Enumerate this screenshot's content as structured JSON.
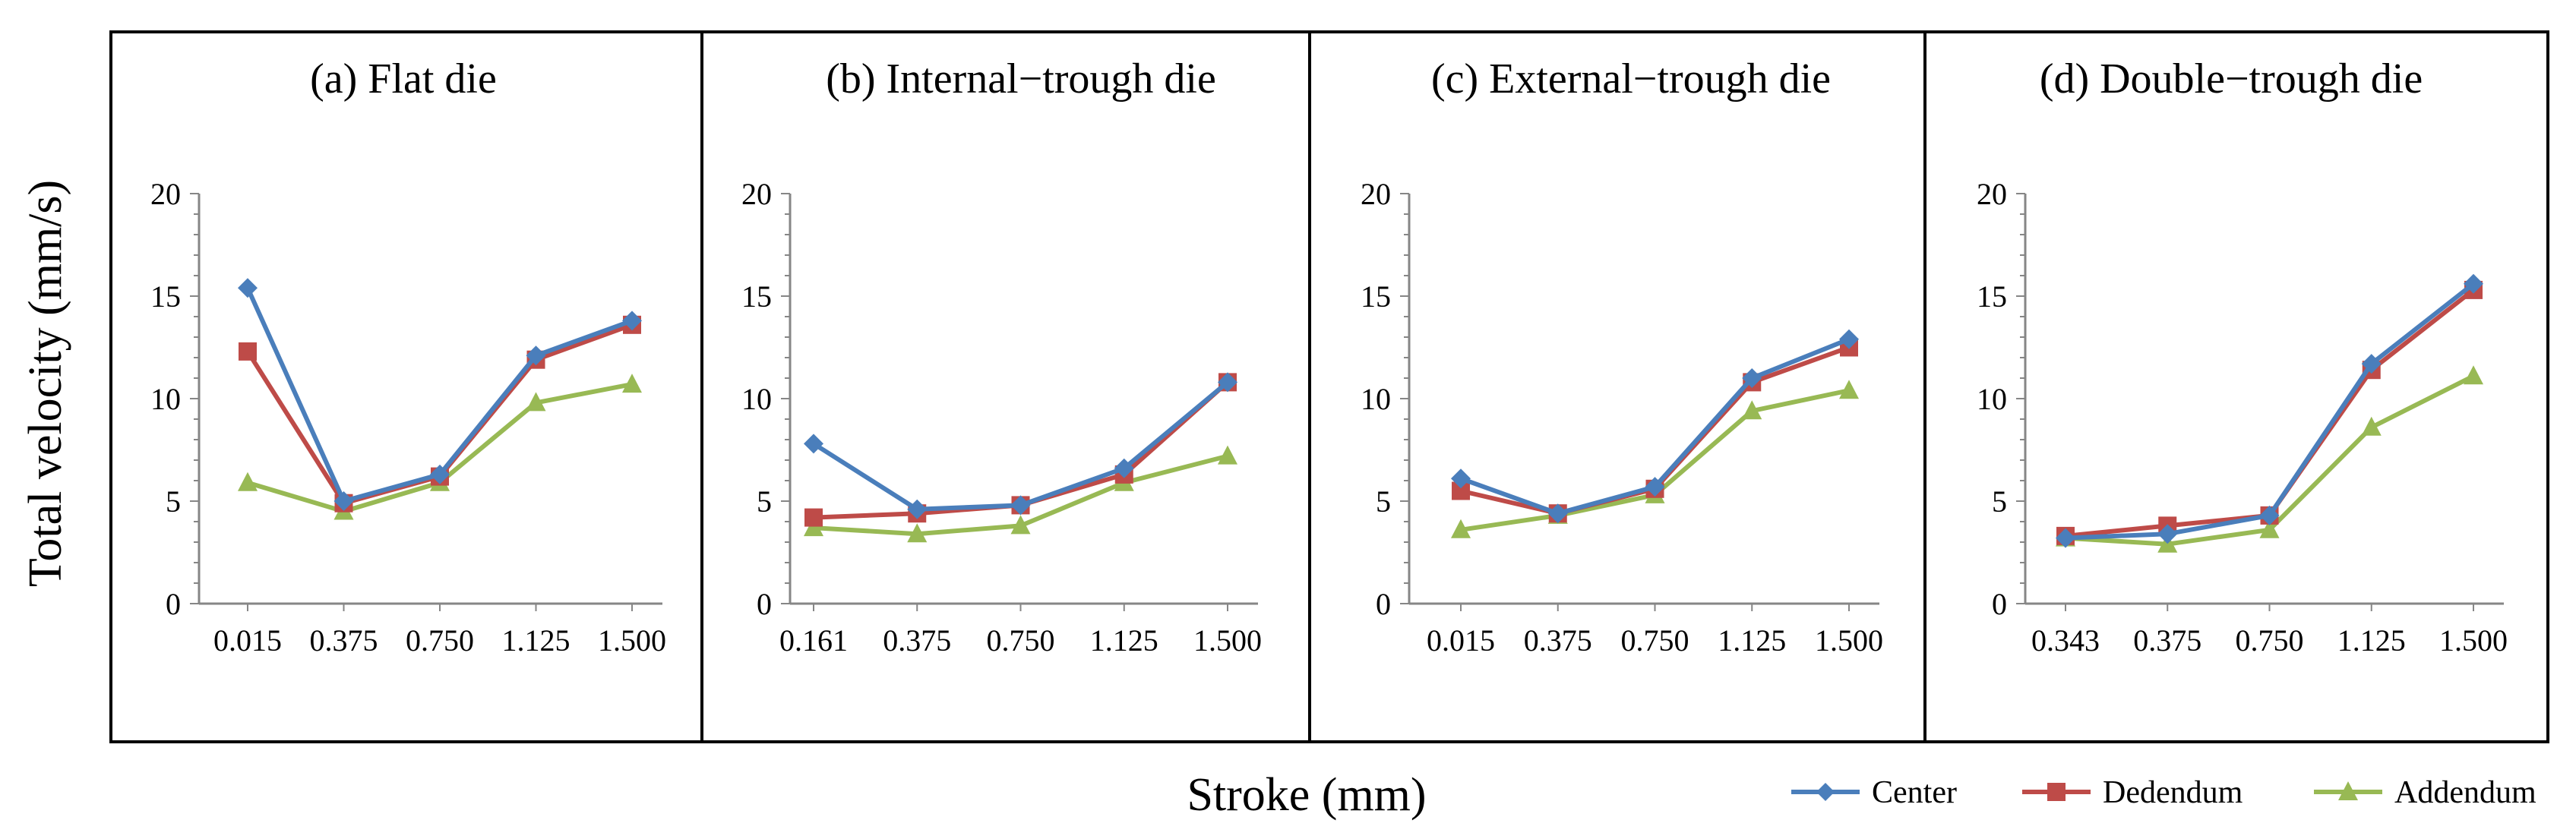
{
  "figure": {
    "ylabel": "Total velocity (mm/s)",
    "xlabel": "Stroke (mm)"
  },
  "legend": [
    {
      "name": "Center",
      "color": "#4a7ebb",
      "marker": "diamond"
    },
    {
      "name": "Dedendum",
      "color": "#be4b48",
      "marker": "square"
    },
    {
      "name": "Addendum",
      "color": "#98b954",
      "marker": "triangle"
    }
  ],
  "chart_data": [
    {
      "type": "line",
      "title": "(a) Flat die",
      "categories": [
        "0.015",
        "0.375",
        "0.750",
        "1.125",
        "1.500"
      ],
      "yticks": [
        "0",
        "5",
        "10",
        "15",
        "20"
      ],
      "ylim": [
        0,
        20
      ],
      "series": [
        {
          "name": "Center",
          "values": [
            15.4,
            5.0,
            6.3,
            12.1,
            13.8
          ]
        },
        {
          "name": "Dedendum",
          "values": [
            12.3,
            4.9,
            6.2,
            11.9,
            13.6
          ]
        },
        {
          "name": "Addendum",
          "values": [
            5.9,
            4.5,
            5.9,
            9.8,
            10.7
          ]
        }
      ]
    },
    {
      "type": "line",
      "title": "(b) Internal−trough die",
      "categories": [
        "0.161",
        "0.375",
        "0.750",
        "1.125",
        "1.500"
      ],
      "yticks": [
        "0",
        "5",
        "10",
        "15",
        "20"
      ],
      "ylim": [
        0,
        20
      ],
      "series": [
        {
          "name": "Center",
          "values": [
            7.8,
            4.6,
            4.8,
            6.6,
            10.8
          ]
        },
        {
          "name": "Dedendum",
          "values": [
            4.2,
            4.4,
            4.8,
            6.3,
            10.8
          ]
        },
        {
          "name": "Addendum",
          "values": [
            3.7,
            3.4,
            3.8,
            5.9,
            7.2
          ]
        }
      ]
    },
    {
      "type": "line",
      "title": "(c) External−trough die",
      "categories": [
        "0.015",
        "0.375",
        "0.750",
        "1.125",
        "1.500"
      ],
      "yticks": [
        "0",
        "5",
        "10",
        "15",
        "20"
      ],
      "ylim": [
        0,
        20
      ],
      "series": [
        {
          "name": "Center",
          "values": [
            6.1,
            4.4,
            5.7,
            11.0,
            12.9
          ]
        },
        {
          "name": "Dedendum",
          "values": [
            5.5,
            4.4,
            5.6,
            10.8,
            12.5
          ]
        },
        {
          "name": "Addendum",
          "values": [
            3.6,
            4.3,
            5.3,
            9.4,
            10.4
          ]
        }
      ]
    },
    {
      "type": "line",
      "title": "(d) Double−trough die",
      "categories": [
        "0.343",
        "0.375",
        "0.750",
        "1.125",
        "1.500"
      ],
      "yticks": [
        "0",
        "5",
        "10",
        "15",
        "20"
      ],
      "ylim": [
        0,
        20
      ],
      "series": [
        {
          "name": "Center",
          "values": [
            3.2,
            3.4,
            4.3,
            11.7,
            15.6
          ]
        },
        {
          "name": "Dedendum",
          "values": [
            3.3,
            3.8,
            4.3,
            11.4,
            15.3
          ]
        },
        {
          "name": "Addendum",
          "values": [
            3.2,
            2.9,
            3.6,
            8.6,
            11.1
          ]
        }
      ]
    }
  ]
}
